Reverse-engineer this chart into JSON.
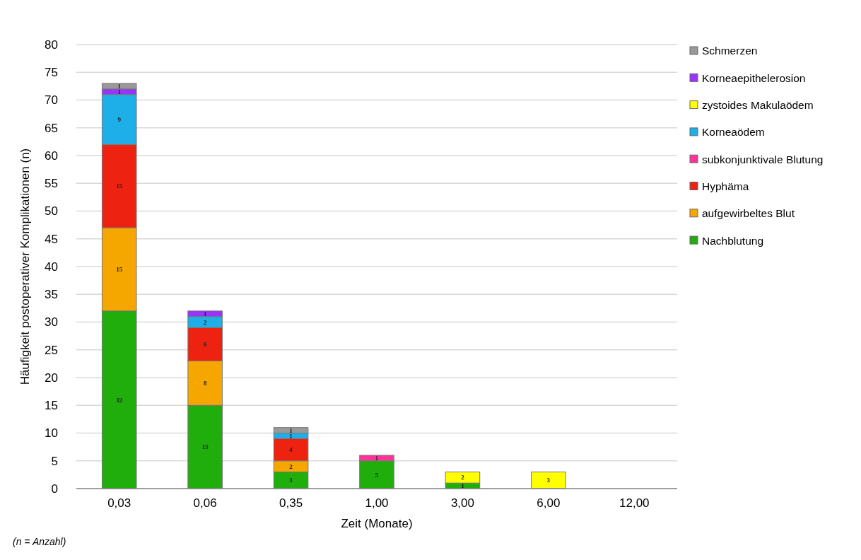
{
  "chart_data": {
    "type": "bar",
    "stacked": true,
    "xlabel": "Zeit (Monate)",
    "ylabel": "Häufigkeit postoperativer Komplikationen (n)",
    "categories": [
      "0,03",
      "0,06",
      "0,35",
      "1,00",
      "3,00",
      "6,00",
      "12,00"
    ],
    "ylim": [
      0,
      80
    ],
    "yticks": [
      0,
      5,
      10,
      15,
      20,
      25,
      30,
      35,
      40,
      45,
      50,
      55,
      60,
      65,
      70,
      75,
      80
    ],
    "grid": "y",
    "legend": "right",
    "data_labels": true,
    "annotations": [
      "(n = Anzahl)"
    ],
    "series": [
      {
        "name": "Nachblutung",
        "color": "#1fae0c",
        "values": [
          32,
          15,
          3,
          5,
          1,
          null,
          null
        ]
      },
      {
        "name": "aufgewirbeltes Blut",
        "color": "#f5a700",
        "values": [
          15,
          8,
          2,
          null,
          null,
          null,
          null
        ]
      },
      {
        "name": "Hyphäma",
        "color": "#ee2211",
        "values": [
          15,
          6,
          4,
          null,
          null,
          null,
          null
        ]
      },
      {
        "name": "subkonjunktivale Blutung",
        "color": "#ff3399",
        "values": [
          null,
          null,
          null,
          1,
          null,
          null,
          null
        ]
      },
      {
        "name": "Korneaödem",
        "color": "#1eaee8",
        "values": [
          9,
          2,
          1,
          null,
          null,
          null,
          null
        ]
      },
      {
        "name": "zystoides Makulaödem",
        "color": "#ffff00",
        "values": [
          null,
          null,
          null,
          null,
          2,
          3,
          null
        ]
      },
      {
        "name": "Korneaepithelerosion",
        "color": "#9933ff",
        "values": [
          1,
          1,
          null,
          null,
          null,
          null,
          null
        ]
      },
      {
        "name": "Schmerzen",
        "color": "#999999",
        "values": [
          1,
          null,
          1,
          null,
          null,
          null,
          null
        ]
      }
    ]
  }
}
